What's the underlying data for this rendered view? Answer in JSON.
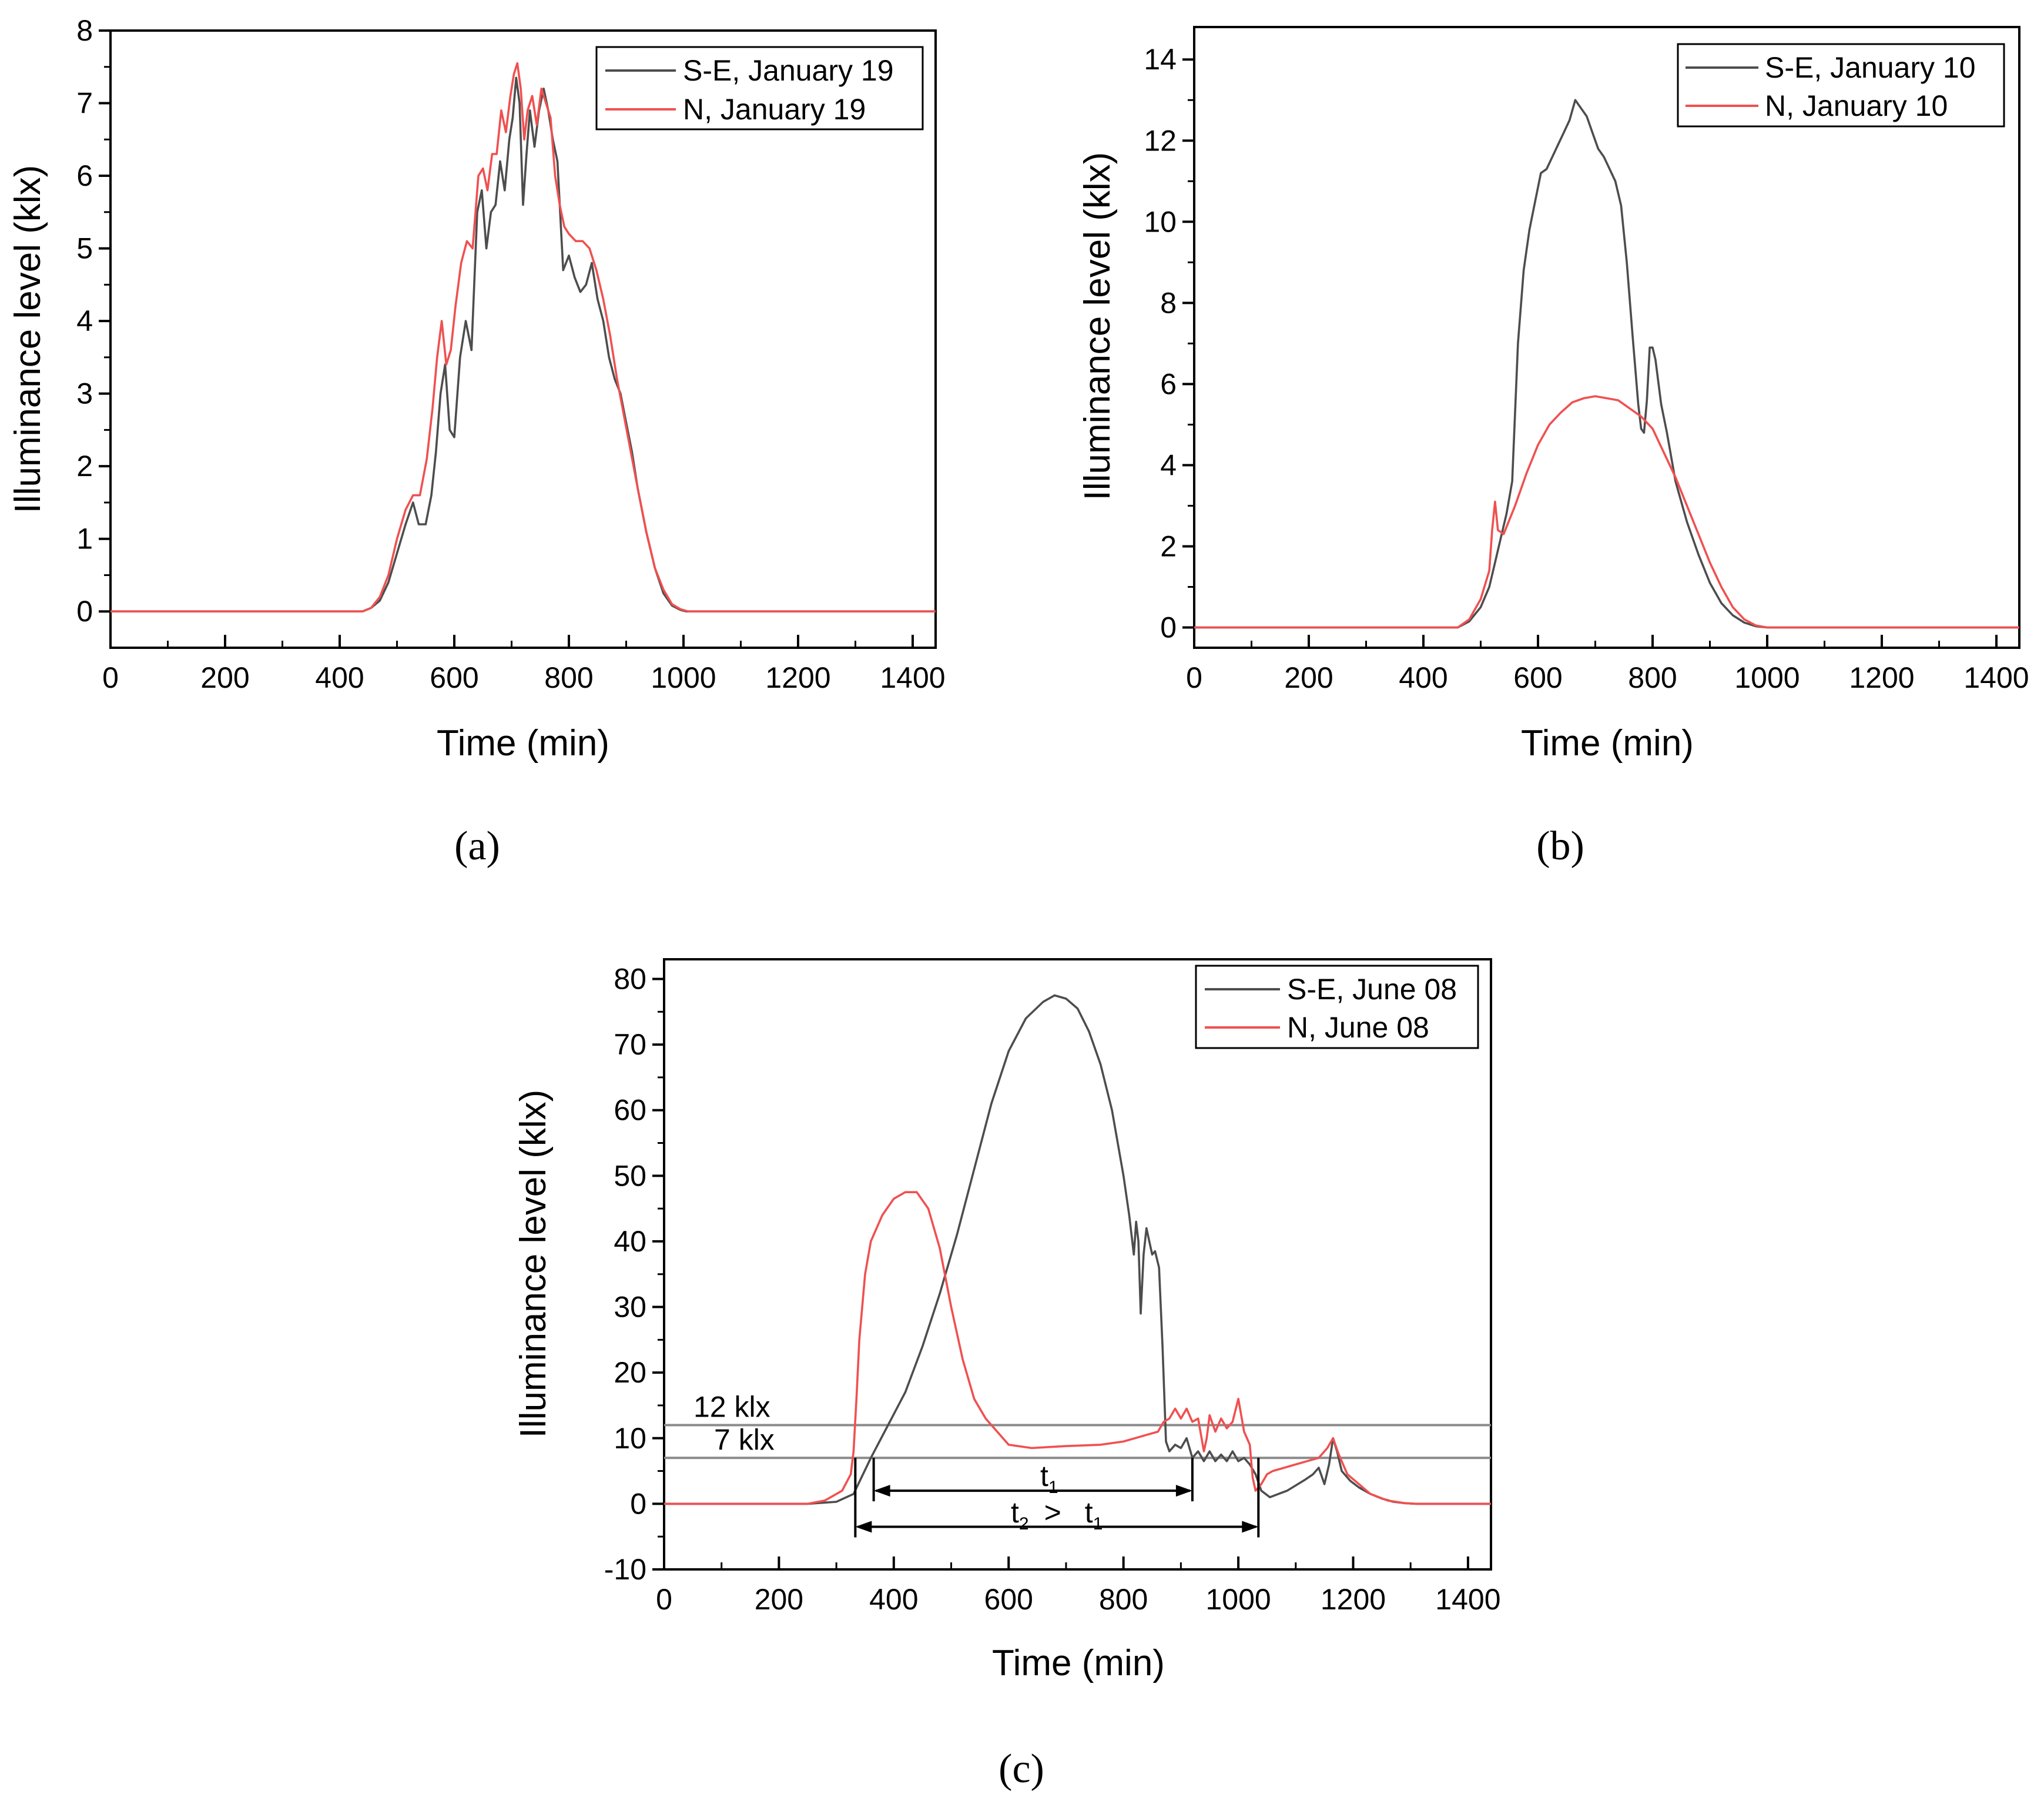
{
  "chart_data": [
    {
      "panel": "a",
      "caption": "(a)",
      "type": "line",
      "xlabel": "Time (min)",
      "ylabel": "Illuminance level (klx)",
      "xlim": [
        0,
        1440
      ],
      "ylim": [
        -0.5,
        8
      ],
      "xticks": [
        0,
        200,
        400,
        600,
        800,
        1000,
        1200,
        1400
      ],
      "yticks": [
        0,
        1,
        2,
        3,
        4,
        5,
        6,
        7,
        8
      ],
      "legend_position": "top-right",
      "series": [
        {
          "name": "S-E, January 19",
          "color": "#4d4d4d",
          "x": [
            0,
            440,
            455,
            470,
            485,
            500,
            515,
            528,
            538,
            550,
            560,
            568,
            576,
            584,
            592,
            600,
            610,
            620,
            630,
            640,
            648,
            656,
            664,
            672,
            680,
            688,
            696,
            702,
            708,
            714,
            720,
            726,
            732,
            740,
            748,
            756,
            764,
            772,
            780,
            790,
            800,
            810,
            820,
            830,
            840,
            850,
            860,
            870,
            880,
            890,
            900,
            910,
            920,
            935,
            950,
            965,
            980,
            995,
            1005,
            1440
          ],
          "y": [
            0,
            0,
            0.05,
            0.15,
            0.4,
            0.8,
            1.2,
            1.5,
            1.2,
            1.2,
            1.6,
            2.2,
            3.0,
            3.4,
            2.5,
            2.4,
            3.5,
            4.0,
            3.6,
            5.5,
            5.8,
            5.0,
            5.5,
            5.6,
            6.2,
            5.8,
            6.5,
            6.8,
            7.35,
            7.0,
            5.6,
            6.3,
            6.9,
            6.4,
            6.9,
            7.2,
            6.9,
            6.5,
            6.2,
            4.7,
            4.9,
            4.6,
            4.4,
            4.5,
            4.8,
            4.3,
            4.0,
            3.5,
            3.2,
            3.0,
            2.6,
            2.2,
            1.7,
            1.1,
            0.6,
            0.25,
            0.08,
            0.02,
            0,
            0
          ]
        },
        {
          "name": "N, January 19",
          "color": "#f05050",
          "x": [
            0,
            440,
            455,
            470,
            485,
            500,
            515,
            528,
            540,
            552,
            562,
            570,
            578,
            586,
            594,
            602,
            612,
            622,
            632,
            642,
            650,
            658,
            666,
            674,
            682,
            690,
            698,
            704,
            710,
            716,
            722,
            728,
            736,
            744,
            752,
            760,
            768,
            776,
            784,
            792,
            800,
            812,
            824,
            836,
            848,
            860,
            872,
            884,
            896,
            908,
            920,
            935,
            950,
            965,
            980,
            995,
            1008,
            1440
          ],
          "y": [
            0,
            0,
            0.05,
            0.2,
            0.5,
            1.0,
            1.4,
            1.6,
            1.6,
            2.1,
            2.8,
            3.5,
            4.0,
            3.4,
            3.6,
            4.2,
            4.8,
            5.1,
            5.0,
            6.0,
            6.1,
            5.8,
            6.3,
            6.3,
            6.9,
            6.6,
            7.1,
            7.4,
            7.55,
            7.2,
            6.5,
            6.9,
            7.1,
            6.7,
            7.2,
            7.0,
            6.8,
            6.0,
            5.6,
            5.3,
            5.2,
            5.1,
            5.1,
            5.0,
            4.7,
            4.3,
            3.8,
            3.2,
            2.7,
            2.2,
            1.7,
            1.1,
            0.6,
            0.3,
            0.1,
            0.03,
            0,
            0
          ]
        }
      ]
    },
    {
      "panel": "b",
      "caption": "(b)",
      "type": "line",
      "xlabel": "Time (min)",
      "ylabel": "Illuminance level (klx)",
      "xlim": [
        0,
        1440
      ],
      "ylim": [
        -0.5,
        14.8
      ],
      "xticks": [
        0,
        200,
        400,
        600,
        800,
        1000,
        1200,
        1400
      ],
      "yticks": [
        0,
        2,
        4,
        6,
        8,
        10,
        12,
        14
      ],
      "legend_position": "top-right",
      "series": [
        {
          "name": "S-E, January 10",
          "color": "#4d4d4d",
          "x": [
            0,
            460,
            480,
            500,
            515,
            525,
            535,
            545,
            555,
            565,
            575,
            585,
            595,
            605,
            615,
            625,
            635,
            645,
            655,
            665,
            675,
            685,
            695,
            705,
            715,
            725,
            735,
            745,
            755,
            765,
            775,
            780,
            785,
            790,
            795,
            800,
            805,
            815,
            825,
            840,
            860,
            880,
            900,
            920,
            940,
            960,
            980,
            1000,
            1440
          ],
          "y": [
            0,
            0,
            0.15,
            0.5,
            1.0,
            1.6,
            2.2,
            2.8,
            3.6,
            7.0,
            8.8,
            9.8,
            10.5,
            11.2,
            11.3,
            11.6,
            11.9,
            12.2,
            12.5,
            13.0,
            12.8,
            12.6,
            12.2,
            11.8,
            11.6,
            11.3,
            11.0,
            10.4,
            9.0,
            7.2,
            5.5,
            4.9,
            4.8,
            5.6,
            6.9,
            6.9,
            6.6,
            5.5,
            4.8,
            3.6,
            2.6,
            1.8,
            1.1,
            0.6,
            0.3,
            0.12,
            0.03,
            0,
            0
          ]
        },
        {
          "name": "N, January 10",
          "color": "#f05050",
          "x": [
            0,
            460,
            480,
            500,
            515,
            520,
            525,
            530,
            540,
            560,
            580,
            600,
            620,
            640,
            660,
            680,
            700,
            720,
            740,
            760,
            780,
            800,
            820,
            840,
            860,
            880,
            900,
            920,
            940,
            960,
            980,
            1000,
            1440
          ],
          "y": [
            0,
            0,
            0.2,
            0.7,
            1.4,
            2.4,
            3.1,
            2.4,
            2.3,
            3.0,
            3.8,
            4.5,
            5.0,
            5.3,
            5.55,
            5.65,
            5.7,
            5.65,
            5.6,
            5.4,
            5.2,
            4.9,
            4.3,
            3.7,
            3.0,
            2.3,
            1.6,
            1.0,
            0.5,
            0.2,
            0.05,
            0,
            0
          ]
        }
      ]
    },
    {
      "panel": "c",
      "caption": "(c)",
      "type": "line",
      "xlabel": "Time (min)",
      "ylabel": "Illuminance level (klx)",
      "xlim": [
        0,
        1440
      ],
      "ylim": [
        -10,
        83
      ],
      "xticks": [
        0,
        200,
        400,
        600,
        800,
        1000,
        1200,
        1400
      ],
      "yticks": [
        -10,
        0,
        10,
        20,
        30,
        40,
        50,
        60,
        70,
        80
      ],
      "legend_position": "top-right",
      "series": [
        {
          "name": "S-E, June 08",
          "color": "#4d4d4d",
          "x": [
            0,
            250,
            300,
            330,
            360,
            390,
            420,
            450,
            480,
            510,
            540,
            570,
            600,
            630,
            660,
            680,
            700,
            720,
            740,
            760,
            780,
            800,
            810,
            818,
            822,
            826,
            830,
            835,
            840,
            845,
            850,
            855,
            862,
            868,
            874,
            880,
            890,
            900,
            910,
            920,
            930,
            940,
            950,
            960,
            970,
            980,
            990,
            1000,
            1010,
            1020,
            1030,
            1040,
            1055,
            1070,
            1085,
            1100,
            1115,
            1130,
            1140,
            1150,
            1158,
            1165,
            1172,
            1180,
            1195,
            1210,
            1230,
            1250,
            1270,
            1290,
            1310,
            1440
          ],
          "y": [
            0,
            0,
            0.3,
            1.5,
            7.0,
            12.0,
            17.0,
            24.0,
            32.0,
            41.0,
            51.0,
            61.0,
            69.0,
            74.0,
            76.5,
            77.5,
            77.0,
            75.5,
            72.0,
            67.0,
            60.0,
            50.0,
            44.0,
            38.0,
            43.0,
            40.0,
            29.0,
            38.0,
            42.0,
            40.0,
            38.0,
            38.5,
            36.0,
            24.0,
            9.5,
            8.0,
            9.0,
            8.5,
            10.0,
            7.0,
            8.0,
            6.5,
            8.0,
            6.5,
            7.5,
            6.5,
            8.0,
            6.5,
            7.0,
            6.0,
            4.5,
            2.0,
            1.0,
            1.5,
            2.0,
            2.8,
            3.6,
            4.5,
            5.5,
            3.0,
            6.0,
            10.0,
            8.0,
            5.0,
            3.5,
            2.5,
            1.5,
            0.8,
            0.3,
            0.1,
            0,
            0
          ]
        },
        {
          "name": "N, June 08",
          "color": "#f05050",
          "x": [
            0,
            250,
            280,
            310,
            325,
            330,
            335,
            340,
            345,
            350,
            360,
            380,
            400,
            420,
            440,
            460,
            480,
            500,
            520,
            540,
            560,
            580,
            600,
            640,
            700,
            760,
            800,
            840,
            860,
            870,
            880,
            890,
            900,
            910,
            920,
            930,
            940,
            945,
            950,
            960,
            970,
            980,
            990,
            1000,
            1010,
            1020,
            1025,
            1030,
            1040,
            1050,
            1060,
            1080,
            1100,
            1120,
            1140,
            1155,
            1165,
            1175,
            1190,
            1210,
            1230,
            1260,
            1290,
            1310,
            1440
          ],
          "y": [
            0,
            0,
            0.5,
            2.0,
            4.5,
            8.0,
            16.0,
            25.0,
            30.0,
            35.0,
            40.0,
            44.0,
            46.5,
            47.5,
            47.5,
            45.0,
            39.0,
            30.0,
            22.0,
            16.0,
            13.0,
            11.0,
            9.0,
            8.5,
            8.8,
            9.0,
            9.5,
            10.5,
            11.0,
            12.5,
            13.0,
            14.5,
            13.0,
            14.5,
            12.5,
            13.0,
            8.0,
            10.0,
            13.5,
            11.0,
            13.0,
            11.5,
            12.5,
            16.0,
            11.0,
            9.0,
            4.0,
            2.0,
            3.0,
            4.5,
            5.0,
            5.5,
            6.0,
            6.5,
            7.0,
            8.5,
            10.0,
            7.5,
            4.5,
            3.0,
            1.5,
            0.5,
            0.1,
            0,
            0
          ]
        }
      ],
      "reference_lines": [
        {
          "label": "12 klx",
          "y": 12
        },
        {
          "label": "7 klx",
          "y": 7
        }
      ],
      "intervals": [
        {
          "label": "t1",
          "x_start": 365,
          "x_end": 920,
          "y": 2
        },
        {
          "label": "t2 > t1",
          "x_start": 333,
          "x_end": 1035,
          "y": -3.5
        }
      ]
    }
  ],
  "annotations": {
    "t1_letter": "t",
    "t1_sub": "1",
    "t2_letter": "t",
    "t2_sub": "2",
    "gt": ">",
    "t1b_letter": "t",
    "t1b_sub": "1"
  }
}
